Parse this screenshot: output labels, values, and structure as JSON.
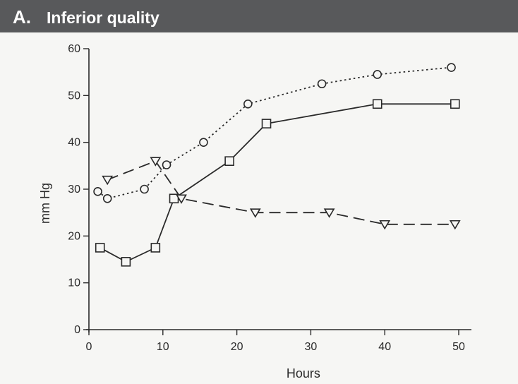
{
  "header": {
    "label": "A.",
    "title": "Inferior quality",
    "background": "#58595b"
  },
  "chart_data": {
    "type": "line",
    "xlabel": "Hours",
    "ylabel": "mm Hg",
    "xlim": [
      0,
      50
    ],
    "ylim": [
      0,
      60
    ],
    "x_ticks": [
      "0",
      "10",
      "20",
      "30",
      "40",
      "50"
    ],
    "y_ticks": [
      "0",
      "10",
      "20",
      "30",
      "40",
      "50",
      "60"
    ],
    "grid": false,
    "legend": "none",
    "series": [
      {
        "marker": "circle",
        "line_style": "dotted",
        "points": [
          [
            1.2,
            29.5
          ],
          [
            2.5,
            28.0
          ],
          [
            7.5,
            30.0
          ],
          [
            10.5,
            35.2
          ],
          [
            15.5,
            40.0
          ],
          [
            21.5,
            48.2
          ],
          [
            31.5,
            52.5
          ],
          [
            39.0,
            54.5
          ],
          [
            49.0,
            56.0
          ]
        ]
      },
      {
        "marker": "square",
        "line_style": "solid",
        "points": [
          [
            1.5,
            17.5
          ],
          [
            5.0,
            14.5
          ],
          [
            9.0,
            17.5
          ],
          [
            11.5,
            28.0
          ],
          [
            19.0,
            36.0
          ],
          [
            24.0,
            44.0
          ],
          [
            39.0,
            48.2
          ],
          [
            49.5,
            48.2
          ]
        ]
      },
      {
        "marker": "triangle-down",
        "line_style": "dashed",
        "points": [
          [
            2.5,
            32.0
          ],
          [
            9.0,
            36.0
          ],
          [
            12.5,
            28.0
          ],
          [
            22.5,
            25.0
          ],
          [
            32.5,
            25.0
          ],
          [
            40.0,
            22.5
          ],
          [
            49.5,
            22.5
          ]
        ]
      }
    ]
  }
}
